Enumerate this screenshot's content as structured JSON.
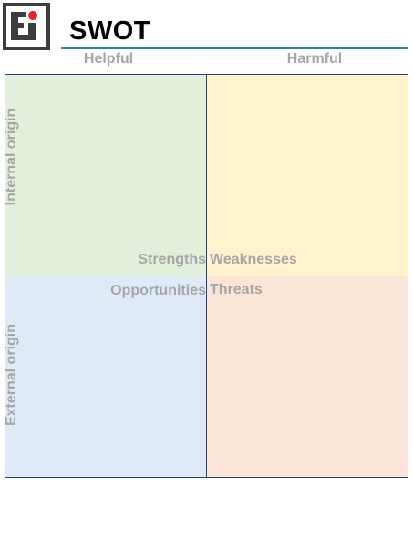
{
  "header": {
    "title": "SWOT"
  },
  "columns": {
    "helpful": "Helpful",
    "harmful": "Harmful"
  },
  "rows": {
    "internal": "Internal origin",
    "external": "External origin"
  },
  "quadrants": {
    "strengths": "Strengths",
    "weaknesses": "Weaknesses",
    "opportunities": "Opportunities",
    "threats": "Threats"
  },
  "colors": {
    "strengths_fill": "#e2efda",
    "weaknesses_fill": "#fff2cc",
    "opportunities_fill": "#deebf7",
    "threats_fill": "#fbe5d6",
    "title_rule": "#2a8a94",
    "logo_dot": "#e8202a"
  },
  "logo": {
    "icon": "ei-logo-icon"
  }
}
